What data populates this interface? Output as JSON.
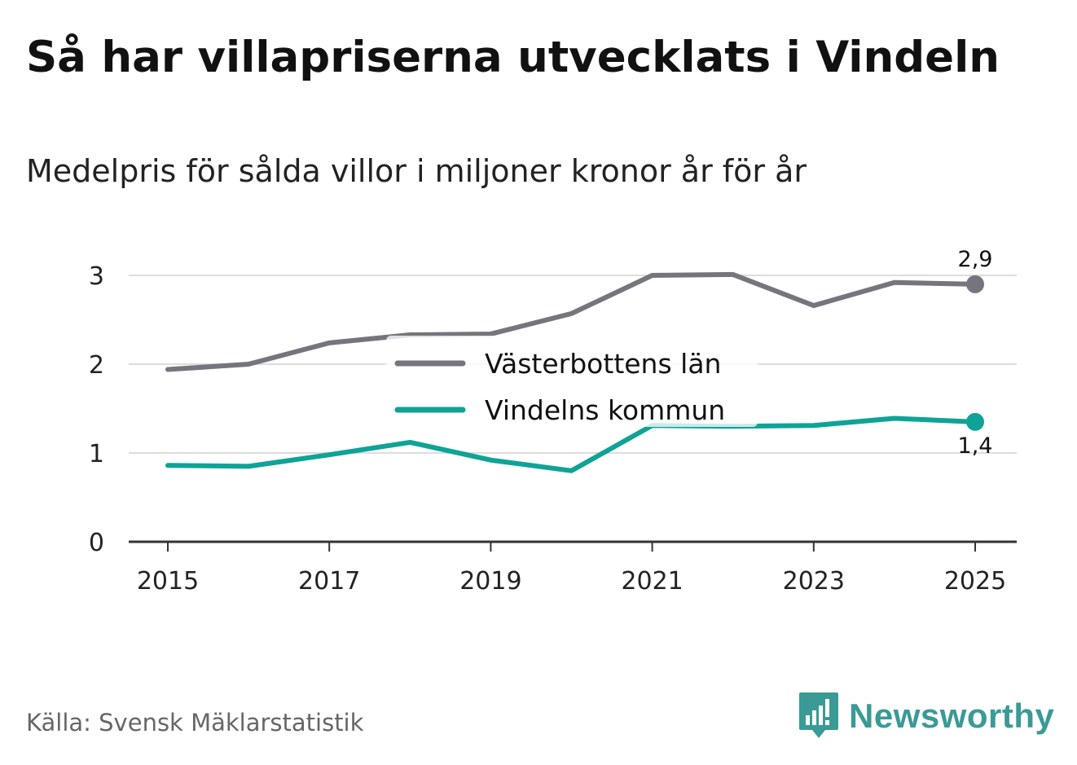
{
  "header": {
    "title": "Så har villapriserna utvecklats i Vindeln",
    "subtitle": "Medelpris för sålda villor i miljoner kronor år för år"
  },
  "footer": {
    "source": "Källa: Svensk Mäklarstatistik",
    "brand": "Newsworthy"
  },
  "colors": {
    "series_gray": "#75757d",
    "series_teal": "#0fa397",
    "grid": "#dddddd",
    "axis": "#333333",
    "brand": "#3a9a96"
  },
  "icons": {
    "brand_logo": "bar-chart-speech-bubble-icon"
  },
  "chart_data": {
    "type": "line",
    "title": "Så har villapriserna utvecklats i Vindeln",
    "subtitle": "Medelpris för sålda villor i miljoner kronor år för år",
    "xlabel": "",
    "ylabel": "",
    "x": [
      2015,
      2016,
      2017,
      2018,
      2019,
      2020,
      2021,
      2022,
      2023,
      2024,
      2025
    ],
    "x_ticks": [
      "2015",
      "2017",
      "2019",
      "2021",
      "2023",
      "2025"
    ],
    "x_tick_values": [
      2015,
      2017,
      2019,
      2021,
      2023,
      2025
    ],
    "y_ticks": [
      "0",
      "1",
      "2",
      "3"
    ],
    "y_tick_values": [
      0,
      1,
      2,
      3
    ],
    "ylim": [
      0,
      3
    ],
    "xlim": [
      2015,
      2025
    ],
    "grid": true,
    "legend_position": "center",
    "series": [
      {
        "name": "Västerbottens län",
        "color": "#75757d",
        "values": [
          1.94,
          2.0,
          2.24,
          2.33,
          2.34,
          2.57,
          3.0,
          3.01,
          2.66,
          2.92,
          2.9
        ],
        "end_label": "2,9"
      },
      {
        "name": "Vindelns kommun",
        "color": "#0fa397",
        "values": [
          0.86,
          0.85,
          0.98,
          1.12,
          0.92,
          0.8,
          1.31,
          1.3,
          1.31,
          1.39,
          1.35
        ],
        "end_label": "1,4"
      }
    ]
  }
}
